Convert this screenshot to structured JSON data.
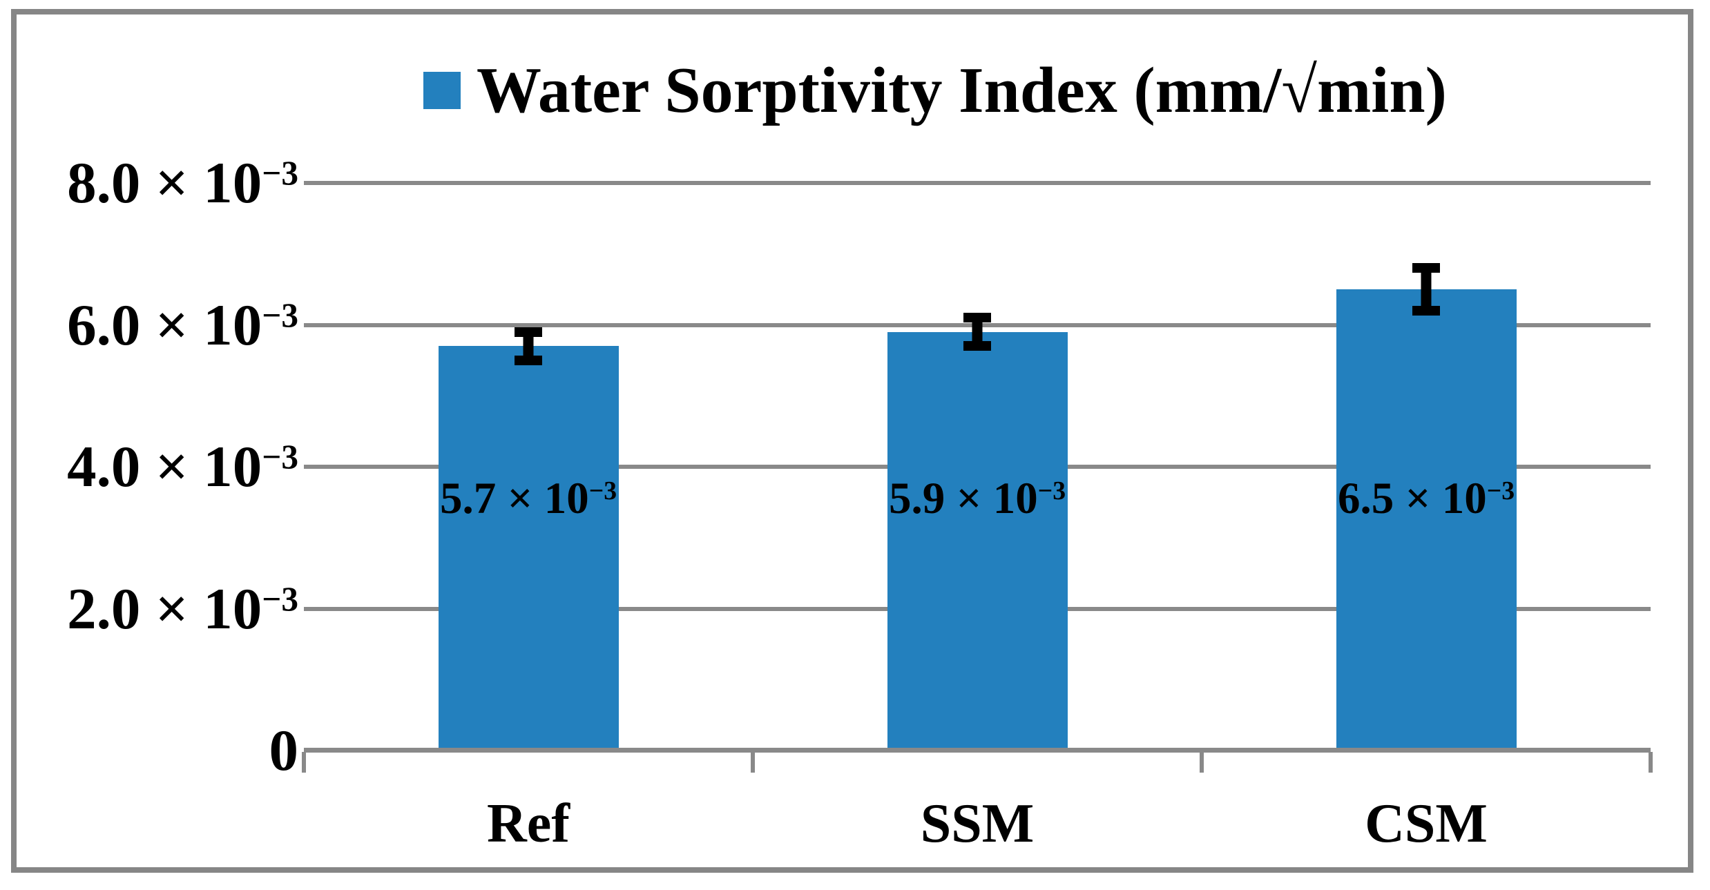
{
  "chart_data": {
    "type": "bar",
    "title": "Water Sorptivity Index (mm/√min)",
    "legend": [
      {
        "label": "Water Sorptivity Index (mm/√min)",
        "marker_color": "#2380BE",
        "position": "top-center"
      }
    ],
    "categories": [
      "Ref",
      "SSM",
      "CSM"
    ],
    "series": [
      {
        "name": "Water Sorptivity Index (mm/√min)",
        "values": [
          0.0057,
          0.0059,
          0.0065
        ],
        "errors": [
          0.0002,
          0.0002,
          0.0003
        ]
      }
    ],
    "data_labels": [
      {
        "text": "5.7 × 10⁻³",
        "base": "5.7 × 10",
        "exp": "−3"
      },
      {
        "text": "5.9 × 10⁻³",
        "base": "5.9 × 10",
        "exp": "−3"
      },
      {
        "text": "6.5 × 10⁻³",
        "base": "6.5 × 10",
        "exp": "−3"
      }
    ],
    "y_axis": {
      "min": 0,
      "max": 0.008,
      "ticks": [
        {
          "value": 0,
          "text": "0",
          "base": "0",
          "exp": ""
        },
        {
          "value": 0.002,
          "text": "2.0 × 10⁻³",
          "base": "2.0 × 10",
          "exp": "−3"
        },
        {
          "value": 0.004,
          "text": "4.0 × 10⁻³",
          "base": "4.0 × 10",
          "exp": "−3"
        },
        {
          "value": 0.006,
          "text": "6.0 × 10⁻³",
          "base": "6.0 × 10",
          "exp": "−3"
        },
        {
          "value": 0.008,
          "text": "8.0 × 10⁻³",
          "base": "8.0 × 10",
          "exp": "−3"
        }
      ]
    },
    "xlabel": "",
    "ylabel": "",
    "grid": true,
    "legend_position": "top",
    "colors": {
      "bar": "#2380BE",
      "error_bar": "#000000",
      "gridline": "#898989",
      "axis_line": "#898989",
      "frame_border": "#868686",
      "text": "#000000",
      "background": "#FFFFFF"
    }
  }
}
